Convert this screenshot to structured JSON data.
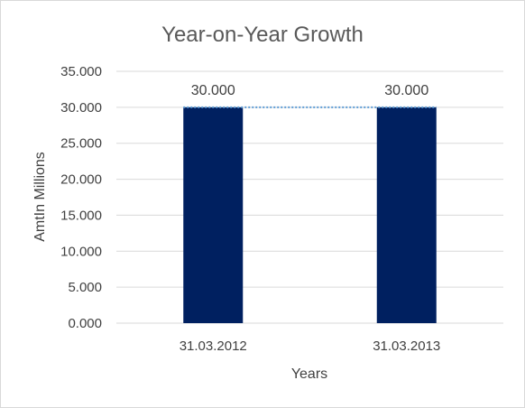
{
  "chart_data": {
    "type": "bar",
    "title": "Year-on-Year Growth",
    "xlabel": "Years",
    "ylabel": "AmtIn Millions",
    "categories": [
      "31.03.2012",
      "31.03.2013"
    ],
    "values": [
      30.0,
      30.0
    ],
    "data_labels": [
      "30.000",
      "30.000"
    ],
    "ylim": [
      0,
      35
    ],
    "y_ticks": [
      0,
      5,
      10,
      15,
      20,
      25,
      30,
      35
    ],
    "y_tick_labels": [
      "0.000",
      "5.000",
      "10.000",
      "15.000",
      "20.000",
      "25.000",
      "30.000",
      "35.000"
    ],
    "grid": true,
    "legend": "none",
    "trendline": "linear",
    "colors": {
      "bar": "#002060",
      "grid": "#d9d9d9",
      "trendline": "#5b9bd5",
      "text": "#404040",
      "title": "#595959"
    }
  }
}
